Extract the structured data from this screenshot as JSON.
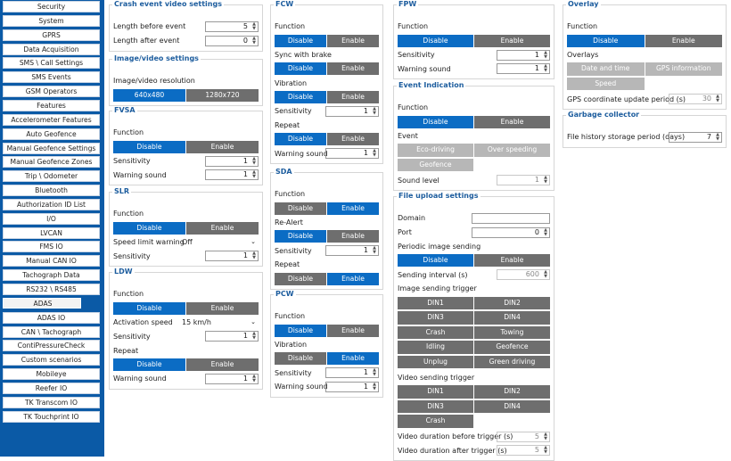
{
  "sidebar": {
    "items": [
      "Security",
      "System",
      "GPRS",
      "Data Acquisition",
      "SMS \\ Call Settings",
      "SMS Events",
      "GSM Operators",
      "Features",
      "Accelerometer Features",
      "Auto Geofence",
      "Manual Geofence Settings",
      "Manual Geofence Zones",
      "Trip \\ Odometer",
      "Bluetooth",
      "Authorization ID List",
      "I/O",
      "LVCAN",
      "FMS IO",
      "Manual CAN IO",
      "Tachograph Data",
      "RS232 \\ RS485",
      "ADAS",
      "ADAS IO",
      "CAN \\ Tachograph",
      "ContiPressureCheck",
      "Custom scenarios",
      "Mobileye",
      "Reefer IO",
      "TK Transcom IO",
      "TK Touchprint IO"
    ],
    "selected": 21
  },
  "panels": [
    {
      "title": "Crash event video settings",
      "rows": [
        {
          "kind": "field",
          "label": "Length before event",
          "value": 5
        },
        {
          "kind": "field",
          "label": "Length after event",
          "value": 0
        }
      ]
    },
    {
      "title": "Image/video settings",
      "rows": [
        {
          "kind": "label",
          "label": "Image/video resolution"
        },
        {
          "kind": "toggle",
          "options": [
            "640x480",
            "1280x720"
          ],
          "active": 0
        }
      ]
    },
    {
      "title": "FVSA",
      "rows": [
        {
          "kind": "label",
          "label": "Function"
        },
        {
          "kind": "toggle",
          "options": [
            "Disable",
            "Enable"
          ],
          "active": 0
        },
        {
          "kind": "field",
          "label": "Sensitivity",
          "value": 1
        },
        {
          "kind": "field",
          "label": "Warning sound",
          "value": 1
        }
      ]
    },
    {
      "title": "SLR",
      "rows": [
        {
          "kind": "label",
          "label": "Function"
        },
        {
          "kind": "toggle",
          "options": [
            "Disable",
            "Enable"
          ],
          "active": 0
        },
        {
          "kind": "select",
          "label": "Speed limit warning",
          "value": "Off"
        },
        {
          "kind": "field",
          "label": "Sensitivity",
          "value": 1
        }
      ]
    },
    {
      "title": "LDW",
      "rows": [
        {
          "kind": "label",
          "label": "Function"
        },
        {
          "kind": "toggle",
          "options": [
            "Disable",
            "Enable"
          ],
          "active": 0
        },
        {
          "kind": "select",
          "label": "Activation speed",
          "value": "15 km/h"
        },
        {
          "kind": "field",
          "label": "Sensitivity",
          "value": 1
        },
        {
          "kind": "label",
          "label": "Repeat"
        },
        {
          "kind": "toggle",
          "options": [
            "Disable",
            "Enable"
          ],
          "active": 0
        },
        {
          "kind": "field",
          "label": "Warning sound",
          "value": 1
        }
      ]
    },
    {
      "title": "FCW",
      "rows": [
        {
          "kind": "label",
          "label": "Function"
        },
        {
          "kind": "toggle",
          "options": [
            "Disable",
            "Enable"
          ],
          "active": 0
        },
        {
          "kind": "label",
          "label": "Sync with brake"
        },
        {
          "kind": "toggle",
          "options": [
            "Disable",
            "Enable"
          ],
          "active": 0
        },
        {
          "kind": "label",
          "label": "Vibration"
        },
        {
          "kind": "toggle",
          "options": [
            "Disable",
            "Enable"
          ],
          "active": 0
        },
        {
          "kind": "field",
          "label": "Sensitivity",
          "value": 1
        },
        {
          "kind": "label",
          "label": "Repeat"
        },
        {
          "kind": "toggle",
          "options": [
            "Disable",
            "Enable"
          ],
          "active": 0
        },
        {
          "kind": "field",
          "label": "Warning sound",
          "value": 1
        }
      ]
    },
    {
      "title": "SDA",
      "rows": [
        {
          "kind": "label",
          "label": "Function"
        },
        {
          "kind": "toggle",
          "options": [
            "Disable",
            "Enable"
          ],
          "active": 1
        },
        {
          "kind": "label",
          "label": "Re-Alert"
        },
        {
          "kind": "toggle",
          "options": [
            "Disable",
            "Enable"
          ],
          "active": 0
        },
        {
          "kind": "field",
          "label": "Sensitivity",
          "value": 1
        },
        {
          "kind": "label",
          "label": "Repeat"
        },
        {
          "kind": "toggle",
          "options": [
            "Disable",
            "Enable"
          ],
          "active": 1
        }
      ]
    },
    {
      "title": "PCW",
      "rows": [
        {
          "kind": "label",
          "label": "Function"
        },
        {
          "kind": "toggle",
          "options": [
            "Disable",
            "Enable"
          ],
          "active": 0
        },
        {
          "kind": "label",
          "label": "Vibration"
        },
        {
          "kind": "toggle",
          "options": [
            "Disable",
            "Enable"
          ],
          "active": 1
        },
        {
          "kind": "field",
          "label": "Sensitivity",
          "value": 1
        },
        {
          "kind": "field",
          "label": "Warning sound",
          "value": 1
        }
      ]
    },
    {
      "title": "FPW",
      "rows": [
        {
          "kind": "label",
          "label": "Function"
        },
        {
          "kind": "toggle",
          "options": [
            "Disable",
            "Enable"
          ],
          "active": 0
        },
        {
          "kind": "field",
          "label": "Sensitivity",
          "value": 1
        },
        {
          "kind": "field",
          "label": "Warning sound",
          "value": 1
        }
      ]
    },
    {
      "title": "Event Indication",
      "rows": [
        {
          "kind": "label",
          "label": "Function"
        },
        {
          "kind": "toggle",
          "options": [
            "Disable",
            "Enable"
          ],
          "active": 0
        },
        {
          "kind": "label",
          "label": "Event"
        },
        {
          "kind": "grid",
          "options": [
            "Eco-driving",
            "Over speeding",
            "Geofence"
          ],
          "disabled": true
        },
        {
          "kind": "field",
          "label": "Sound level",
          "value": 1,
          "disabled": true
        }
      ]
    },
    {
      "title": "File upload settings",
      "rows": [
        {
          "kind": "field",
          "label": "Domain",
          "value": null,
          "wide": true
        },
        {
          "kind": "field",
          "label": "Port",
          "value": 0,
          "wide": true
        },
        {
          "kind": "label",
          "label": "Periodic image sending"
        },
        {
          "kind": "toggle",
          "options": [
            "Disable",
            "Enable"
          ],
          "active": 0
        },
        {
          "kind": "field",
          "label": "Sending interval (s)",
          "value": 600,
          "disabled": true
        },
        {
          "kind": "label",
          "label": "Image sending trigger"
        },
        {
          "kind": "grid",
          "options": [
            "DIN1",
            "DIN2",
            "DIN3",
            "DIN4",
            "Crash",
            "Towing",
            "Idling",
            "Geofence",
            "Unplug",
            "Green driving"
          ],
          "disabled": false
        },
        {
          "kind": "label",
          "label": "Video sending trigger"
        },
        {
          "kind": "grid",
          "options": [
            "DIN1",
            "DIN2",
            "DIN3",
            "DIN4",
            "Crash"
          ],
          "disabled": false
        },
        {
          "kind": "field",
          "label": "Video duration before trigger (s)",
          "value": 5,
          "disabled": true
        },
        {
          "kind": "field",
          "label": "Video duration after trigger (s)",
          "value": 5,
          "disabled": true
        }
      ]
    },
    {
      "title": "Overlay",
      "rows": [
        {
          "kind": "label",
          "label": "Function"
        },
        {
          "kind": "toggle",
          "options": [
            "Disable",
            "Enable"
          ],
          "active": 0
        },
        {
          "kind": "label",
          "label": "Overlays"
        },
        {
          "kind": "grid",
          "options": [
            "Date and time",
            "GPS information",
            "Speed"
          ],
          "disabled": true
        },
        {
          "kind": "field",
          "label": "GPS coordinate update period (s)",
          "value": 30,
          "disabled": true
        }
      ]
    },
    {
      "title": "Garbage collector",
      "rows": [
        {
          "kind": "field",
          "label": "File history storage period (days)",
          "value": 7
        }
      ]
    }
  ]
}
